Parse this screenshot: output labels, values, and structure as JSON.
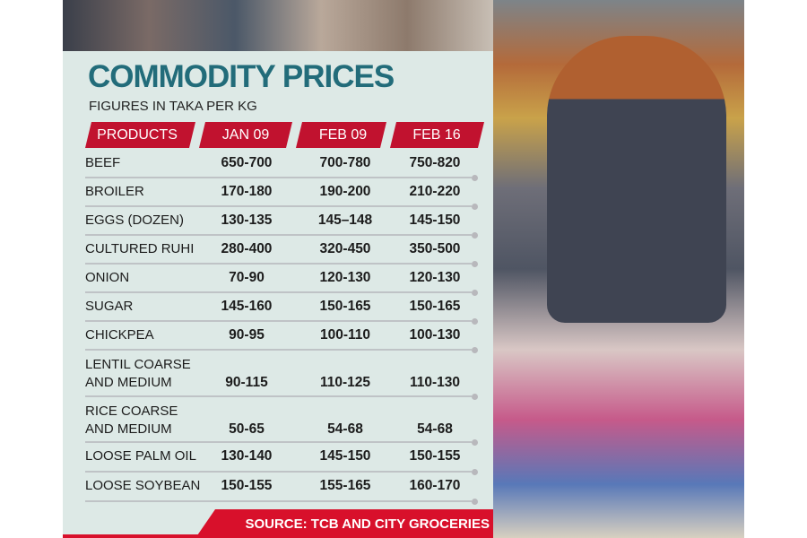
{
  "title": "COMMODITY PRICES",
  "subtitle": "FIGURES IN TAKA PER KG",
  "colors": {
    "title": "#226c7a",
    "header": "#c1122f",
    "source_bar": "#d8102b",
    "panel": "#dde9e6"
  },
  "chart_data": {
    "type": "table",
    "columns": [
      "PRODUCTS",
      "JAN 09",
      "FEB 09",
      "FEB 16"
    ],
    "rows": [
      {
        "product": [
          "BEEF"
        ],
        "values": [
          "650-700",
          "700-780",
          "750-820"
        ]
      },
      {
        "product": [
          "BROILER"
        ],
        "values": [
          "170-180",
          "190-200",
          "210-220"
        ]
      },
      {
        "product": [
          "EGGS (DOZEN)"
        ],
        "values": [
          "130-135",
          "145–148",
          "145-150"
        ]
      },
      {
        "product": [
          "CULTURED RUHI"
        ],
        "values": [
          "280-400",
          "320-450",
          "350-500"
        ]
      },
      {
        "product": [
          "ONION"
        ],
        "values": [
          "70-90",
          "120-130",
          "120-130"
        ]
      },
      {
        "product": [
          "SUGAR"
        ],
        "values": [
          "145-160",
          "150-165",
          "150-165"
        ]
      },
      {
        "product": [
          "CHICKPEA"
        ],
        "values": [
          "90-95",
          "100-110",
          "100-130"
        ]
      },
      {
        "product": [
          "LENTIL COARSE",
          "AND MEDIUM"
        ],
        "values": [
          "90-115",
          "110-125",
          "110-130"
        ]
      },
      {
        "product": [
          "RICE COARSE",
          "AND MEDIUM"
        ],
        "values": [
          "50-65",
          "54-68",
          "54-68"
        ]
      },
      {
        "product": [
          "LOOSE PALM OIL"
        ],
        "values": [
          "130-140",
          "145-150",
          "150-155"
        ]
      },
      {
        "product": [
          "LOOSE SOYBEAN"
        ],
        "values": [
          "150-155",
          "155-165",
          "160-170"
        ]
      }
    ]
  },
  "source": "SOURCE: TCB AND CITY GROCERIES"
}
